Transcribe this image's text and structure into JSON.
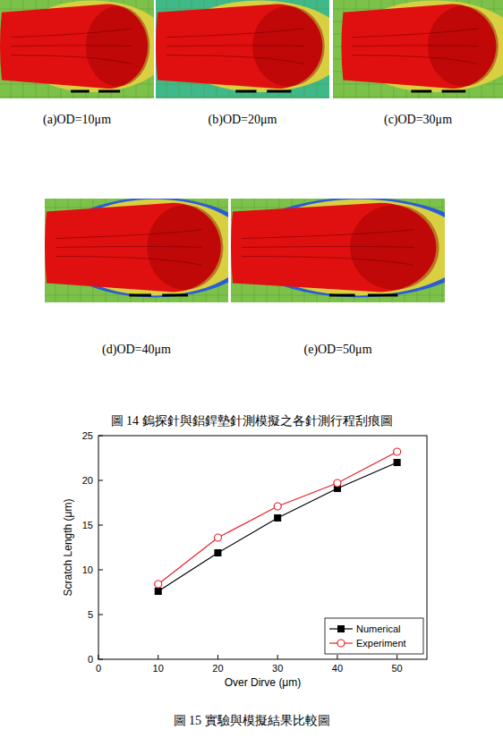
{
  "figure14": {
    "panels": [
      {
        "label": "(a)OD=10μm"
      },
      {
        "label": "(b)OD=20μm"
      },
      {
        "label": "(c)OD=30μm"
      },
      {
        "label": "(d)OD=40μm"
      },
      {
        "label": "(e)OD=50μm"
      }
    ],
    "caption": "圖 14 鎢探針與鋁銲墊針測模擬之各針測行程刮痕圖"
  },
  "chart_data": {
    "type": "line",
    "x_label": "Over Dirve (μm)",
    "y_label": "Scratch Length (μm)",
    "x": [
      10,
      20,
      30,
      40,
      50
    ],
    "series": [
      {
        "name": "Numerical",
        "color": "#000000",
        "marker": "square",
        "values": [
          7.6,
          11.9,
          15.8,
          19.1,
          22.0
        ]
      },
      {
        "name": "Experiment",
        "color": "#e8202a",
        "marker": "open-circle",
        "values": [
          8.4,
          13.6,
          17.1,
          19.7,
          23.2
        ]
      }
    ],
    "xlim": [
      0,
      55
    ],
    "xticks": [
      0,
      10,
      20,
      30,
      40,
      50
    ],
    "ylim": [
      0,
      25
    ],
    "yticks": [
      0,
      5,
      10,
      15,
      20,
      25
    ],
    "grid": false,
    "legend": "lower right"
  },
  "figure15": {
    "caption": "圖 15 實驗與模擬結果比較圖"
  }
}
